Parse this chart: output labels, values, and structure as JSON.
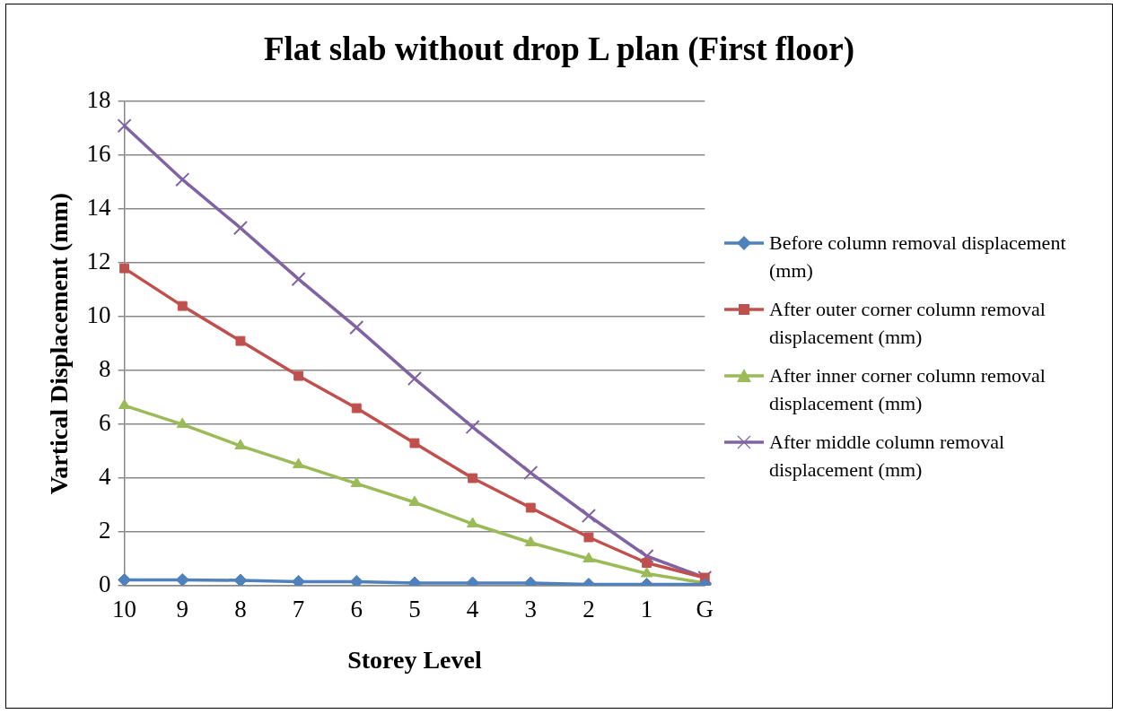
{
  "chart_data": {
    "type": "line",
    "title": "Flat slab without drop L plan (First floor)",
    "xlabel": "Storey Level",
    "ylabel": "Vartical Displacement (mm)",
    "categories": [
      "10",
      "9",
      "8",
      "7",
      "6",
      "5",
      "4",
      "3",
      "2",
      "1",
      "G"
    ],
    "series": [
      {
        "name": "Before column removal displacement (mm)",
        "color": "#4f81bd",
        "marker": "diamond",
        "values": [
          0.22,
          0.22,
          0.2,
          0.15,
          0.15,
          0.1,
          0.1,
          0.1,
          0.05,
          0.05,
          0.05
        ]
      },
      {
        "name": "After outer corner column removal displacement (mm)",
        "color": "#c0504d",
        "marker": "square",
        "values": [
          11.8,
          10.4,
          9.1,
          7.8,
          6.6,
          5.3,
          4.0,
          2.9,
          1.8,
          0.85,
          0.3
        ]
      },
      {
        "name": "After inner corner column removal displacement (mm)",
        "color": "#9bbb59",
        "marker": "triangle",
        "values": [
          6.7,
          6.0,
          5.2,
          4.5,
          3.8,
          3.1,
          2.3,
          1.6,
          1.0,
          0.45,
          0.1
        ]
      },
      {
        "name": "After middle column removal displacement (mm)",
        "color": "#8064a2",
        "marker": "cross",
        "values": [
          17.1,
          15.1,
          13.3,
          11.4,
          9.6,
          7.7,
          5.9,
          4.2,
          2.6,
          1.1,
          0.3
        ]
      }
    ],
    "ylim": [
      0,
      18
    ],
    "yticks": [
      0,
      2,
      4,
      6,
      8,
      10,
      12,
      14,
      16,
      18
    ],
    "grid": "y",
    "legend": "right"
  }
}
